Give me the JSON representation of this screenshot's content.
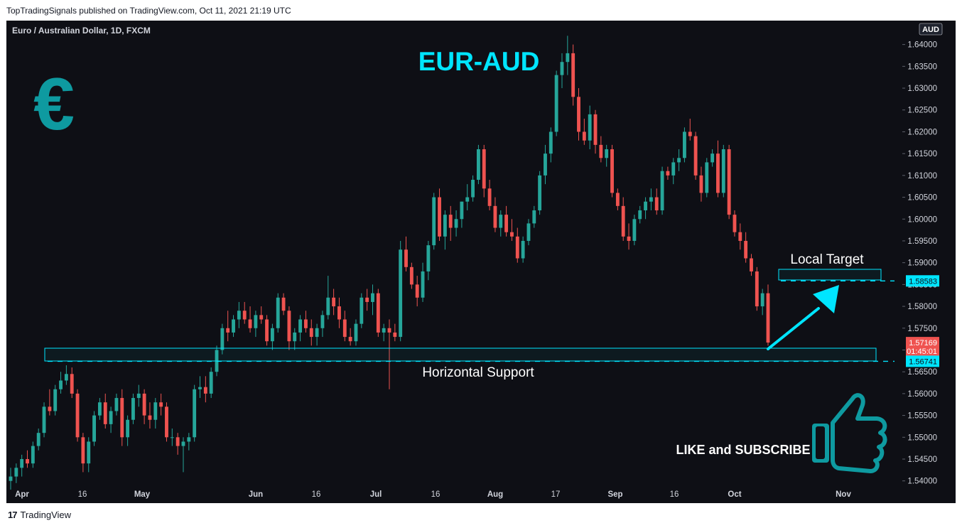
{
  "header": {
    "published_text": "TopTradingSignals published on TradingView.com, Oct 11, 2021 21:19 UTC"
  },
  "chart_title": "Euro / Australian Dollar, 1D, FXCM",
  "footer": {
    "brand": "TradingView",
    "logo_text": "17"
  },
  "currency_label": "AUD",
  "colors": {
    "up": "#26a69a",
    "down": "#ef5350",
    "accent": "#00e5ff",
    "euro_icon": "#0e9aa0",
    "background": "#0e0f15"
  },
  "annotations": {
    "main_title": "EUR-AUD",
    "euro_symbol": "€",
    "local_target_label": "Local Target",
    "horizontal_support_label": "Horizontal Support",
    "like_subscribe": "LIKE and SUBSCRIBE",
    "icons": [
      "euro-icon",
      "thumbs-up-icon",
      "arrow-icon"
    ]
  },
  "chart_data": {
    "type": "candlestick",
    "symbol": "Euro / Australian Dollar",
    "interval": "1D",
    "source": "FXCM",
    "y_ticks": [
      "1.54000",
      "1.54500",
      "1.55000",
      "1.55500",
      "1.56000",
      "1.56500",
      "1.57000",
      "1.57500",
      "1.58000",
      "1.58500",
      "1.59000",
      "1.59500",
      "1.60000",
      "1.60500",
      "1.61000",
      "1.61500",
      "1.62000",
      "1.62500",
      "1.63000",
      "1.63500",
      "1.64000"
    ],
    "ylim": [
      1.538,
      1.6445
    ],
    "x_ticks": [
      "Apr",
      "16",
      "May",
      "Jun",
      "16",
      "Jul",
      "16",
      "Aug",
      "17",
      "Sep",
      "16",
      "Oct",
      "Nov"
    ],
    "price_labels": {
      "local_target": "1.58583",
      "current_price": "1.57169",
      "countdown": "01:45:01",
      "support": "1.56741"
    },
    "levels": {
      "local_target": 1.58583,
      "support": 1.56741,
      "current": 1.57169
    },
    "candles": [
      [
        1.54,
        1.543,
        1.538,
        1.541
      ],
      [
        1.541,
        1.544,
        1.5395,
        1.543
      ],
      [
        1.543,
        1.546,
        1.541,
        1.545
      ],
      [
        1.545,
        1.547,
        1.543,
        1.544
      ],
      [
        1.544,
        1.549,
        1.543,
        1.548
      ],
      [
        1.548,
        1.552,
        1.547,
        1.551
      ],
      [
        1.551,
        1.558,
        1.55,
        1.557
      ],
      [
        1.557,
        1.561,
        1.555,
        1.556
      ],
      [
        1.556,
        1.562,
        1.555,
        1.561
      ],
      [
        1.561,
        1.565,
        1.56,
        1.563
      ],
      [
        1.563,
        1.5665,
        1.562,
        1.5645
      ],
      [
        1.5645,
        1.566,
        1.559,
        1.56
      ],
      [
        1.56,
        1.561,
        1.549,
        1.55
      ],
      [
        1.55,
        1.551,
        1.542,
        1.544
      ],
      [
        1.544,
        1.55,
        1.542,
        1.549
      ],
      [
        1.549,
        1.556,
        1.548,
        1.555
      ],
      [
        1.555,
        1.559,
        1.554,
        1.558
      ],
      [
        1.558,
        1.56,
        1.552,
        1.553
      ],
      [
        1.553,
        1.557,
        1.551,
        1.556
      ],
      [
        1.556,
        1.56,
        1.555,
        1.559
      ],
      [
        1.559,
        1.561,
        1.548,
        1.55
      ],
      [
        1.55,
        1.555,
        1.548,
        1.554
      ],
      [
        1.554,
        1.56,
        1.553,
        1.559
      ],
      [
        1.559,
        1.562,
        1.557,
        1.56
      ],
      [
        1.56,
        1.561,
        1.553,
        1.555
      ],
      [
        1.555,
        1.558,
        1.552,
        1.554
      ],
      [
        1.554,
        1.559,
        1.552,
        1.558
      ],
      [
        1.558,
        1.56,
        1.555,
        1.557
      ],
      [
        1.557,
        1.558,
        1.549,
        1.55
      ],
      [
        1.55,
        1.552,
        1.548,
        1.55
      ],
      [
        1.55,
        1.551,
        1.546,
        1.548
      ],
      [
        1.548,
        1.55,
        1.542,
        1.549
      ],
      [
        1.549,
        1.551,
        1.547,
        1.55
      ],
      [
        1.55,
        1.562,
        1.549,
        1.561
      ],
      [
        1.561,
        1.564,
        1.559,
        1.5615
      ],
      [
        1.5615,
        1.564,
        1.558,
        1.56
      ],
      [
        1.56,
        1.566,
        1.559,
        1.565
      ],
      [
        1.565,
        1.571,
        1.564,
        1.57
      ],
      [
        1.57,
        1.576,
        1.569,
        1.575
      ],
      [
        1.575,
        1.579,
        1.572,
        1.574
      ],
      [
        1.574,
        1.578,
        1.573,
        1.577
      ],
      [
        1.577,
        1.581,
        1.575,
        1.579
      ],
      [
        1.579,
        1.581,
        1.576,
        1.577
      ],
      [
        1.577,
        1.58,
        1.574,
        1.575
      ],
      [
        1.575,
        1.579,
        1.573,
        1.578
      ],
      [
        1.578,
        1.58,
        1.576,
        1.577
      ],
      [
        1.577,
        1.578,
        1.571,
        1.572
      ],
      [
        1.572,
        1.576,
        1.57,
        1.575
      ],
      [
        1.575,
        1.583,
        1.574,
        1.582
      ],
      [
        1.582,
        1.583,
        1.578,
        1.579
      ],
      [
        1.579,
        1.58,
        1.57,
        1.572
      ],
      [
        1.572,
        1.575,
        1.57,
        1.574
      ],
      [
        1.574,
        1.578,
        1.572,
        1.577
      ],
      [
        1.577,
        1.579,
        1.574,
        1.575
      ],
      [
        1.575,
        1.577,
        1.571,
        1.573
      ],
      [
        1.573,
        1.576,
        1.571,
        1.575
      ],
      [
        1.575,
        1.579,
        1.573,
        1.578
      ],
      [
        1.578,
        1.587,
        1.577,
        1.582
      ],
      [
        1.582,
        1.584,
        1.578,
        1.58
      ],
      [
        1.58,
        1.582,
        1.575,
        1.577
      ],
      [
        1.577,
        1.579,
        1.572,
        1.573
      ],
      [
        1.573,
        1.575,
        1.571,
        1.572
      ],
      [
        1.572,
        1.577,
        1.571,
        1.576
      ],
      [
        1.576,
        1.583,
        1.575,
        1.582
      ],
      [
        1.582,
        1.584,
        1.579,
        1.581
      ],
      [
        1.581,
        1.585,
        1.578,
        1.583
      ],
      [
        1.583,
        1.584,
        1.573,
        1.574
      ],
      [
        1.574,
        1.576,
        1.572,
        1.575
      ],
      [
        1.575,
        1.577,
        1.561,
        1.574
      ],
      [
        1.574,
        1.576,
        1.572,
        1.573
      ],
      [
        1.573,
        1.595,
        1.572,
        1.593
      ],
      [
        1.593,
        1.596,
        1.588,
        1.589
      ],
      [
        1.589,
        1.59,
        1.584,
        1.585
      ],
      [
        1.585,
        1.587,
        1.58,
        1.582
      ],
      [
        1.582,
        1.59,
        1.581,
        1.588
      ],
      [
        1.588,
        1.595,
        1.586,
        1.594
      ],
      [
        1.594,
        1.606,
        1.593,
        1.605
      ],
      [
        1.605,
        1.607,
        1.595,
        1.596
      ],
      [
        1.596,
        1.602,
        1.593,
        1.601
      ],
      [
        1.601,
        1.603,
        1.595,
        1.598
      ],
      [
        1.598,
        1.602,
        1.596,
        1.6
      ],
      [
        1.6,
        1.604,
        1.598,
        1.604
      ],
      [
        1.604,
        1.608,
        1.602,
        1.605
      ],
      [
        1.605,
        1.61,
        1.604,
        1.609
      ],
      [
        1.609,
        1.617,
        1.608,
        1.616
      ],
      [
        1.616,
        1.617,
        1.605,
        1.607
      ],
      [
        1.607,
        1.609,
        1.602,
        1.603
      ],
      [
        1.603,
        1.605,
        1.597,
        1.598
      ],
      [
        1.598,
        1.602,
        1.596,
        1.601
      ],
      [
        1.601,
        1.603,
        1.596,
        1.597
      ],
      [
        1.597,
        1.6,
        1.595,
        1.596
      ],
      [
        1.596,
        1.598,
        1.59,
        1.591
      ],
      [
        1.591,
        1.596,
        1.59,
        1.595
      ],
      [
        1.595,
        1.6,
        1.594,
        1.599
      ],
      [
        1.599,
        1.603,
        1.598,
        1.602
      ],
      [
        1.602,
        1.611,
        1.601,
        1.61
      ],
      [
        1.61,
        1.617,
        1.608,
        1.615
      ],
      [
        1.615,
        1.621,
        1.613,
        1.62
      ],
      [
        1.62,
        1.634,
        1.619,
        1.633
      ],
      [
        1.633,
        1.638,
        1.63,
        1.636
      ],
      [
        1.636,
        1.642,
        1.633,
        1.638
      ],
      [
        1.638,
        1.64,
        1.626,
        1.628
      ],
      [
        1.628,
        1.63,
        1.618,
        1.62
      ],
      [
        1.62,
        1.623,
        1.617,
        1.618
      ],
      [
        1.618,
        1.626,
        1.616,
        1.624
      ],
      [
        1.624,
        1.625,
        1.615,
        1.617
      ],
      [
        1.617,
        1.619,
        1.613,
        1.614
      ],
      [
        1.614,
        1.617,
        1.612,
        1.616
      ],
      [
        1.616,
        1.617,
        1.605,
        1.606
      ],
      [
        1.606,
        1.607,
        1.602,
        1.603
      ],
      [
        1.603,
        1.605,
        1.595,
        1.596
      ],
      [
        1.596,
        1.599,
        1.593,
        1.595
      ],
      [
        1.595,
        1.601,
        1.594,
        1.6
      ],
      [
        1.6,
        1.603,
        1.599,
        1.602
      ],
      [
        1.602,
        1.605,
        1.6,
        1.604
      ],
      [
        1.604,
        1.607,
        1.602,
        1.605
      ],
      [
        1.605,
        1.607,
        1.601,
        1.602
      ],
      [
        1.602,
        1.612,
        1.601,
        1.611
      ],
      [
        1.611,
        1.612,
        1.609,
        1.61
      ],
      [
        1.61,
        1.614,
        1.608,
        1.613
      ],
      [
        1.613,
        1.616,
        1.611,
        1.614
      ],
      [
        1.614,
        1.621,
        1.613,
        1.62
      ],
      [
        1.62,
        1.623,
        1.618,
        1.619
      ],
      [
        1.619,
        1.62,
        1.609,
        1.61
      ],
      [
        1.61,
        1.612,
        1.604,
        1.606
      ],
      [
        1.606,
        1.614,
        1.605,
        1.613
      ],
      [
        1.613,
        1.616,
        1.612,
        1.615
      ],
      [
        1.615,
        1.618,
        1.605,
        1.606
      ],
      [
        1.606,
        1.617,
        1.605,
        1.616
      ],
      [
        1.616,
        1.617,
        1.6,
        1.601
      ],
      [
        1.601,
        1.602,
        1.596,
        1.597
      ],
      [
        1.597,
        1.599,
        1.593,
        1.595
      ],
      [
        1.595,
        1.597,
        1.59,
        1.591
      ],
      [
        1.591,
        1.592,
        1.587,
        1.588
      ],
      [
        1.588,
        1.589,
        1.579,
        1.58
      ],
      [
        1.58,
        1.584,
        1.578,
        1.583
      ],
      [
        1.583,
        1.585,
        1.571,
        1.5717
      ]
    ]
  }
}
